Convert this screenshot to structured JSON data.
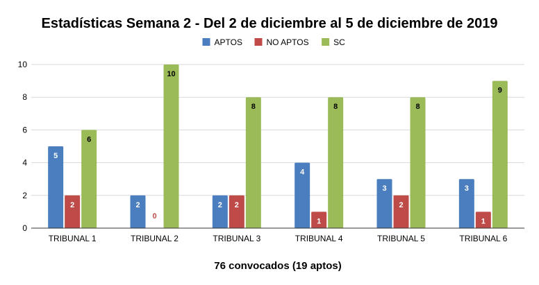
{
  "chart_data": {
    "type": "bar",
    "title": "Estadísticas Semana 2 - Del 2 de diciembre al 5 de diciembre de 2019",
    "xlabel": "76 convocados (19 aptos)",
    "ylabel": "",
    "ylim": [
      0,
      10
    ],
    "yticks": [
      0,
      2,
      4,
      6,
      8,
      10
    ],
    "grid": true,
    "legend_position": "top",
    "categories": [
      "TRIBUNAL 1",
      "TRIBUNAL 2",
      "TRIBUNAL 3",
      "TRIBUNAL 4",
      "TRIBUNAL 5",
      "TRIBUNAL 6"
    ],
    "series": [
      {
        "name": "APTOS",
        "color": "#4a7ebf",
        "label_color": "#ffffff",
        "values": [
          5,
          2,
          2,
          4,
          3,
          3
        ]
      },
      {
        "name": "NO APTOS",
        "color": "#be4b48",
        "label_color": "#ffffff",
        "values": [
          2,
          0,
          2,
          1,
          2,
          1
        ]
      },
      {
        "name": "SC",
        "color": "#9bbb59",
        "label_color": "#000000",
        "values": [
          6,
          10,
          8,
          8,
          8,
          9
        ]
      }
    ]
  }
}
